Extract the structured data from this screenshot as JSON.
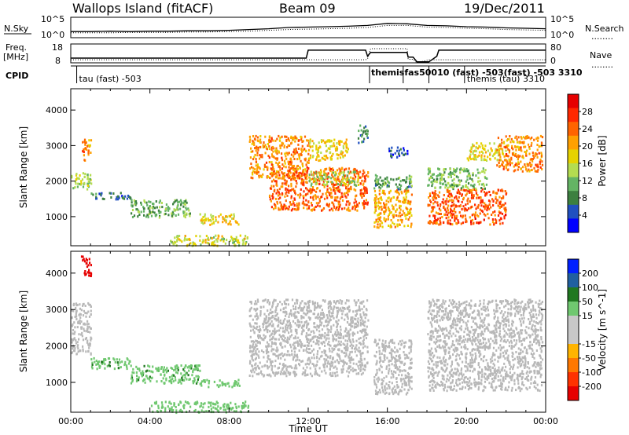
{
  "header": {
    "station": "Wallops Island (fitACF)",
    "beam": "Beam 09",
    "date": "19/Dec/2011"
  },
  "top_panel": {
    "left_label": "N.Sky",
    "left_ticks": [
      "10^5",
      "10^0"
    ],
    "right_ticks": [
      "10^5",
      "10^0"
    ],
    "right_label": "N.Search",
    "right_dots": "........"
  },
  "freq_panel": {
    "left_label_line1": "Freq.",
    "left_label_line2": "[MHz]",
    "left_ticks": [
      "18",
      "8"
    ],
    "right_ticks": [
      "80",
      "0"
    ],
    "right_label": "Nave",
    "right_dots": "........"
  },
  "cpid_panel": {
    "label": "CPID",
    "entries": [
      {
        "t": 0.3,
        "text": "tau (fast) -503"
      },
      {
        "t": 15.1,
        "text": "themis (tau) 3310"
      },
      {
        "t": 15.1,
        "text": "themis (fast) -503"
      },
      {
        "t": 16.8,
        "text": "tau (fast) -503"
      },
      {
        "t": 18.1,
        "text": "tau (fast) -503"
      },
      {
        "t": 19.9,
        "text": "themis (tau) 3310"
      }
    ],
    "overlap_text": "themisfas50010 (fast) -503(fast) -503 3310"
  },
  "colors": {
    "power_scale": [
      "#0000ff",
      "#2050c0",
      "#3c8040",
      "#64b464",
      "#b4dc50",
      "#e6d200",
      "#ffa000",
      "#ff6400",
      "#ff2800",
      "#e60000"
    ],
    "velocity_scale": [
      "#0020ff",
      "#2060a0",
      "#207820",
      "#70c870",
      "#c8c8c8",
      "#c8c8c8",
      "#ffb400",
      "#ff7800",
      "#ff3200",
      "#e60000"
    ],
    "ground_scatter": "#b8b8b8"
  },
  "chart_data": [
    {
      "type": "line",
      "panel": "noise",
      "x": [
        0,
        1,
        2,
        3,
        4,
        5,
        6,
        7,
        8,
        9,
        10,
        11,
        12,
        13,
        14,
        15,
        16,
        17,
        18,
        19,
        20,
        21,
        22,
        23,
        24
      ],
      "series": [
        {
          "name": "N.Sky",
          "values": [
            1.5,
            1.5,
            1.6,
            1.5,
            1.6,
            1.6,
            1.7,
            1.7,
            1.8,
            2.0,
            2.2,
            2.5,
            2.6,
            2.7,
            2.8,
            3.0,
            3.5,
            3.4,
            3.0,
            2.9,
            2.7,
            2.6,
            2.4,
            2.3,
            2.2
          ]
        },
        {
          "name": "N.Search",
          "values": [
            1.2,
            1.2,
            1.2,
            1.3,
            1.3,
            1.3,
            1.4,
            1.4,
            1.5,
            1.6,
            1.8,
            2.0,
            2.1,
            2.2,
            2.3,
            2.5,
            3.0,
            3.0,
            2.6,
            2.5,
            2.3,
            2.2,
            2.0,
            1.9,
            1.8
          ]
        }
      ],
      "ylim": [
        0,
        5
      ],
      "log_scale": true,
      "xlim": [
        0,
        24
      ]
    },
    {
      "type": "line",
      "panel": "frequency",
      "x": [
        0,
        11.9,
        12.0,
        14.9,
        15.0,
        15.15,
        17.0,
        17.05,
        17.3,
        17.5,
        18.1,
        18.5,
        18.6,
        24
      ],
      "series": [
        {
          "name": "Freq.",
          "values": [
            10.5,
            10.5,
            14.7,
            14.7,
            11.5,
            13.5,
            13.5,
            11.0,
            11.0,
            8.5,
            8.5,
            11.5,
            14.7,
            14.7
          ]
        },
        {
          "name": "Nave",
          "values": [
            13,
            13,
            13,
            13,
            17,
            60,
            60,
            15,
            15,
            0,
            13,
            13,
            13,
            13
          ]
        }
      ],
      "xlim": [
        0,
        24
      ],
      "ylim": [
        8,
        18
      ],
      "y2lim": [
        0,
        80
      ]
    },
    {
      "type": "heatmap",
      "panel": "power",
      "ylabel": "Slant Range [km]",
      "xlim": [
        0,
        24
      ],
      "ylim": [
        180,
        4600
      ],
      "yticks": [
        1000,
        2000,
        3000,
        4000
      ],
      "colorbar_label": "Power [dB]",
      "colorbar_ticks": [
        4,
        8,
        12,
        16,
        20,
        24,
        28
      ],
      "colorbar_range": [
        0,
        32
      ],
      "regions": [
        {
          "t0": 0.0,
          "t1": 1.0,
          "r0": 1800,
          "r1": 2300,
          "v": 14
        },
        {
          "t0": 0.5,
          "t1": 1.0,
          "r0": 2600,
          "r1": 3200,
          "v": 22
        },
        {
          "t0": 1.0,
          "t1": 3.0,
          "r0": 1500,
          "r1": 1700,
          "v": 6
        },
        {
          "t0": 3.0,
          "t1": 6.0,
          "r0": 1000,
          "r1": 1500,
          "v": 11
        },
        {
          "t0": 6.5,
          "t1": 8.5,
          "r0": 800,
          "r1": 1100,
          "v": 18
        },
        {
          "t0": 5.0,
          "t1": 9.0,
          "r0": 200,
          "r1": 500,
          "v": 16
        },
        {
          "t0": 9.0,
          "t1": 12.0,
          "r0": 2100,
          "r1": 3300,
          "v": 22
        },
        {
          "t0": 10.0,
          "t1": 15.0,
          "r0": 1200,
          "r1": 2400,
          "v": 24
        },
        {
          "t0": 12.0,
          "t1": 14.5,
          "r0": 1900,
          "r1": 2300,
          "v": 14
        },
        {
          "t0": 12.0,
          "t1": 14.0,
          "r0": 2600,
          "r1": 3200,
          "v": 18
        },
        {
          "t0": 15.3,
          "t1": 17.2,
          "r0": 700,
          "r1": 1800,
          "v": 20
        },
        {
          "t0": 15.3,
          "t1": 17.2,
          "r0": 1800,
          "r1": 2200,
          "v": 10
        },
        {
          "t0": 18.0,
          "t1": 22.0,
          "r0": 800,
          "r1": 1800,
          "v": 25
        },
        {
          "t0": 18.0,
          "t1": 21.0,
          "r0": 1800,
          "r1": 2400,
          "v": 12
        },
        {
          "t0": 20.0,
          "t1": 22.0,
          "r0": 2600,
          "r1": 3100,
          "v": 17
        },
        {
          "t0": 21.5,
          "t1": 23.8,
          "r0": 2300,
          "r1": 3300,
          "v": 22
        },
        {
          "t0": 14.5,
          "t1": 15.0,
          "r0": 3100,
          "r1": 3600,
          "v": 8
        },
        {
          "t0": 16.0,
          "t1": 17.0,
          "r0": 2700,
          "r1": 3000,
          "v": 5
        }
      ]
    },
    {
      "type": "heatmap",
      "panel": "velocity",
      "ylabel": "Slant Range [km]",
      "xlabel": "Time UT",
      "xlim": [
        0,
        24
      ],
      "ylim": [
        180,
        4600
      ],
      "xticks": [
        "00:00",
        "04:00",
        "08:00",
        "12:00",
        "16:00",
        "20:00",
        "00:00"
      ],
      "yticks": [
        1000,
        2000,
        3000,
        4000
      ],
      "colorbar_label": "Velocity [m s^-1]",
      "colorbar_ticks": [
        -200,
        -100,
        -50,
        -15,
        15,
        50,
        100,
        200
      ],
      "regions": [
        {
          "t0": 0.0,
          "t1": 1.0,
          "r0": 1800,
          "r1": 3200,
          "v": "gs"
        },
        {
          "t0": 1.0,
          "t1": 3.0,
          "r0": 1400,
          "r1": 1700,
          "v": 40
        },
        {
          "t0": 3.0,
          "t1": 6.5,
          "r0": 1000,
          "r1": 1500,
          "v": 40
        },
        {
          "t0": 6.5,
          "t1": 8.5,
          "r0": 900,
          "r1": 1100,
          "v": 30
        },
        {
          "t0": 4.0,
          "t1": 9.0,
          "r0": 200,
          "r1": 500,
          "v": 30
        },
        {
          "t0": 9.0,
          "t1": 15.0,
          "r0": 1200,
          "r1": 3300,
          "v": "gs"
        },
        {
          "t0": 15.3,
          "t1": 17.2,
          "r0": 700,
          "r1": 2200,
          "v": "gs"
        },
        {
          "t0": 18.0,
          "t1": 23.8,
          "r0": 800,
          "r1": 3300,
          "v": "gs"
        },
        {
          "t0": 0.5,
          "t1": 1.0,
          "r0": 3900,
          "r1": 4500,
          "v": -200
        }
      ]
    }
  ]
}
